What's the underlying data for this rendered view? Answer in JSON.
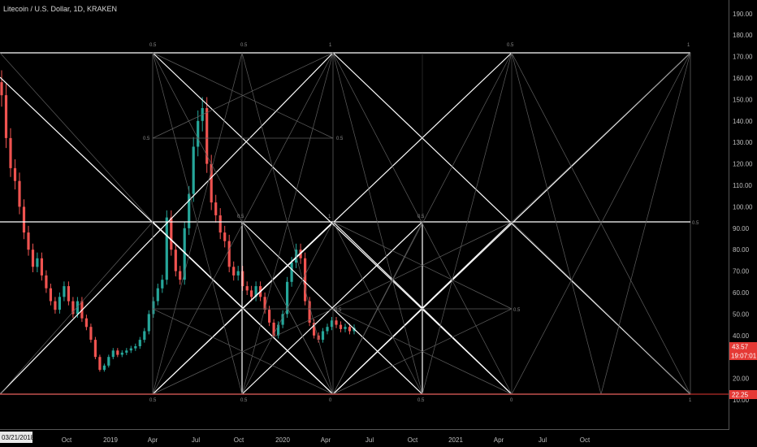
{
  "header": {
    "symbol": "Litecoin / U.S. Dollar, 1D, KRAKEN"
  },
  "chart_data": {
    "type": "candlestick",
    "title": "Litecoin / U.S. Dollar, 1D, KRAKEN",
    "y_ticks": [
      "10.00",
      "20.00",
      "30.00",
      "40.00",
      "50.00",
      "60.00",
      "70.00",
      "80.00",
      "90.00",
      "100.00",
      "110.00",
      "120.00",
      "130.00",
      "140.00",
      "150.00",
      "160.00",
      "170.00",
      "180.00",
      "190.00"
    ],
    "x_ticks": [
      "Oct",
      "2019",
      "Apr",
      "Jul",
      "Oct",
      "2020",
      "Apr",
      "Jul",
      "Oct",
      "2021",
      "Apr",
      "Jul",
      "Oct"
    ],
    "current_date_label": "03/21/2018",
    "last_price": "43.57",
    "countdown": "19:07:01",
    "level_price": "22.25",
    "close_series": [
      152,
      132,
      118,
      112,
      100,
      88,
      80,
      72,
      76,
      68,
      62,
      56,
      52,
      58,
      63,
      56,
      50,
      56,
      48,
      44,
      38,
      30,
      24,
      26,
      30,
      33,
      31,
      32,
      33,
      34,
      35,
      38,
      42,
      50,
      56,
      62,
      66,
      95,
      80,
      70,
      66,
      90,
      106,
      128,
      140,
      146,
      120,
      102,
      96,
      88,
      84,
      72,
      68,
      70,
      63,
      61,
      58,
      63,
      58,
      52,
      46,
      40,
      45,
      50,
      65,
      74,
      80,
      76,
      56,
      46,
      40,
      38,
      42,
      44,
      47,
      45,
      43,
      44,
      42,
      43.57
    ],
    "gann_level_labels": [
      "0.5",
      "1",
      "0.5",
      "0",
      "0.5"
    ],
    "colors": {
      "up": "#26a69a",
      "down": "#ef5350",
      "grid": "#6b6b6b",
      "fan": "#ffffff",
      "price_badge": "#e53935"
    }
  }
}
